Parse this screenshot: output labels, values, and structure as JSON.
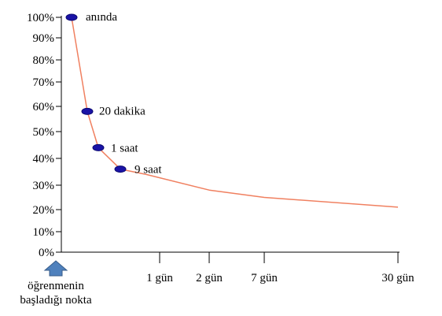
{
  "chart_data": {
    "type": "line",
    "y_tick_labels": [
      "0%",
      "10%",
      "20%",
      "30%",
      "40%",
      "50%",
      "60%",
      "70%",
      "80%",
      "90%",
      "100%"
    ],
    "y_tick_values": [
      0,
      10,
      20,
      30,
      40,
      50,
      60,
      70,
      80,
      90,
      100
    ],
    "ylim": [
      0,
      100
    ],
    "x_tick_labels": [
      "1 gün",
      "2 gün",
      "7 gün",
      "30 gün"
    ],
    "start_marker_label": [
      "öğrenmenin",
      "başladığı nokta"
    ],
    "series": [
      {
        "values": [
          {
            "time": "anında",
            "retention": 100
          },
          {
            "time": "20 dakika",
            "retention": 58
          },
          {
            "time": "1 saat",
            "retention": 44
          },
          {
            "time": "9 saat",
            "retention": 36
          },
          {
            "time": "1 gün",
            "retention": 34
          },
          {
            "time": "2 gün",
            "retention": 28
          },
          {
            "time": "7 gün",
            "retention": 25
          },
          {
            "time": "30 gün",
            "retention": 21
          }
        ],
        "marked_points": [
          "anında",
          "20 dakika",
          "1 saat",
          "9 saat"
        ]
      }
    ],
    "grid": false,
    "legend": "none",
    "colors": {
      "curve": "#f08060",
      "marker": "#1a13a6",
      "marker_outline": "#0a0870",
      "arrow": "#4f81bd",
      "arrow_outline": "#385d8a",
      "axis": "#000000"
    }
  }
}
